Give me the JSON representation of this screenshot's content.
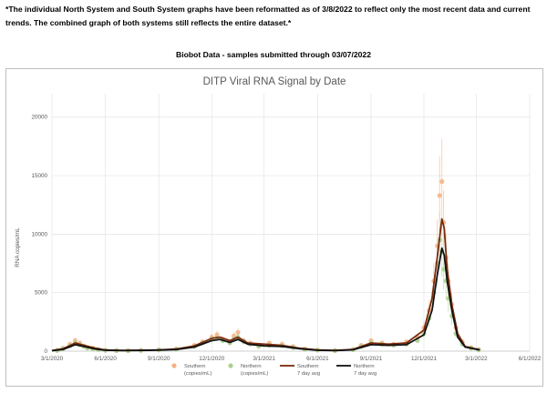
{
  "notice": "*The individual North System and South System graphs have been reformatted as of 3/8/2022 to reflect only the most recent data and current trends.  The combined graph of both systems still reflects the entire dataset.*",
  "subtitle": "Biobot Data - samples submitted through 03/07/2022",
  "chart_data": {
    "type": "scatter",
    "title": "DITP Viral RNA Signal by Date",
    "xlabel": "",
    "ylabel": "RNA copies/mL",
    "ylim": [
      0,
      22000
    ],
    "yticks": [
      0,
      5000,
      10000,
      15000,
      20000
    ],
    "xlim": [
      "2020-03-01",
      "2022-06-01"
    ],
    "xticks": [
      "3/1/2020",
      "6/1/2020",
      "9/1/2020",
      "12/1/2020",
      "3/1/2021",
      "6/1/2021",
      "9/1/2021",
      "12/1/2021",
      "3/1/2022",
      "6/1/2022"
    ],
    "grid": true,
    "legend_position": "bottom",
    "legend": [
      {
        "label": "Southern",
        "sub": "(copies/mL)",
        "kind": "marker",
        "color": "#f4b183"
      },
      {
        "label": "Northern",
        "sub": "(copies/mL)",
        "kind": "marker",
        "color": "#a9d18e"
      },
      {
        "label": "Southern",
        "sub": "7 day avg",
        "kind": "line",
        "color": "#7b2a0c"
      },
      {
        "label": "Northern",
        "sub": "7 day avg",
        "kind": "line",
        "color": "#111111"
      }
    ],
    "series": [
      {
        "name": "Southern (copies/mL)",
        "kind": "scatter",
        "color": "#f4b183",
        "x": [
          "2020-03-10",
          "2020-03-20",
          "2020-04-01",
          "2020-04-10",
          "2020-04-18",
          "2020-04-25",
          "2020-05-01",
          "2020-05-10",
          "2020-05-20",
          "2020-06-01",
          "2020-06-20",
          "2020-07-10",
          "2020-08-01",
          "2020-09-01",
          "2020-10-01",
          "2020-11-01",
          "2020-11-15",
          "2020-12-01",
          "2020-12-10",
          "2020-12-20",
          "2021-01-01",
          "2021-01-08",
          "2021-01-15",
          "2021-01-25",
          "2021-02-05",
          "2021-02-20",
          "2021-03-10",
          "2021-04-01",
          "2021-04-20",
          "2021-05-10",
          "2021-06-01",
          "2021-07-01",
          "2021-08-01",
          "2021-08-15",
          "2021-09-01",
          "2021-09-20",
          "2021-10-10",
          "2021-11-01",
          "2021-11-20",
          "2021-12-01",
          "2021-12-10",
          "2021-12-18",
          "2021-12-24",
          "2021-12-28",
          "2022-01-01",
          "2022-01-04",
          "2022-01-08",
          "2022-01-12",
          "2022-01-18",
          "2022-01-25",
          "2022-02-05",
          "2022-02-20",
          "2022-03-05"
        ],
        "y": [
          80,
          250,
          600,
          900,
          700,
          450,
          300,
          250,
          150,
          80,
          60,
          50,
          80,
          120,
          200,
          500,
          800,
          1200,
          1400,
          1000,
          800,
          1300,
          1600,
          900,
          700,
          500,
          700,
          600,
          400,
          200,
          100,
          60,
          150,
          500,
          900,
          700,
          600,
          800,
          1200,
          2000,
          3500,
          6000,
          9000,
          13300,
          14500,
          11000,
          8000,
          6000,
          4000,
          2000,
          800,
          300,
          150
        ]
      },
      {
        "name": "Northern (copies/mL)",
        "kind": "scatter",
        "color": "#a9d18e",
        "x": [
          "2020-03-10",
          "2020-03-20",
          "2020-04-01",
          "2020-04-10",
          "2020-04-18",
          "2020-04-25",
          "2020-05-01",
          "2020-05-10",
          "2020-05-20",
          "2020-06-01",
          "2020-06-20",
          "2020-07-10",
          "2020-08-01",
          "2020-09-01",
          "2020-10-01",
          "2020-11-01",
          "2020-11-15",
          "2020-12-01",
          "2020-12-10",
          "2020-12-20",
          "2021-01-01",
          "2021-01-08",
          "2021-01-15",
          "2021-01-25",
          "2021-02-05",
          "2021-02-20",
          "2021-03-10",
          "2021-04-01",
          "2021-04-20",
          "2021-05-10",
          "2021-06-01",
          "2021-07-01",
          "2021-08-01",
          "2021-08-15",
          "2021-09-01",
          "2021-09-20",
          "2021-10-10",
          "2021-11-01",
          "2021-11-20",
          "2021-12-01",
          "2021-12-10",
          "2021-12-18",
          "2021-12-24",
          "2021-12-28",
          "2022-01-01",
          "2022-01-04",
          "2022-01-08",
          "2022-01-12",
          "2022-01-18",
          "2022-01-25",
          "2022-02-05",
          "2022-02-20",
          "2022-03-05"
        ],
        "y": [
          60,
          200,
          450,
          700,
          550,
          400,
          250,
          180,
          120,
          70,
          50,
          40,
          60,
          100,
          150,
          400,
          700,
          1000,
          1100,
          900,
          700,
          1000,
          1200,
          800,
          600,
          400,
          500,
          450,
          300,
          150,
          80,
          50,
          120,
          400,
          700,
          600,
          500,
          600,
          900,
          1500,
          2800,
          5000,
          7500,
          9500,
          8500,
          7000,
          6000,
          4500,
          3000,
          1500,
          600,
          250,
          100
        ]
      },
      {
        "name": "Southern 7 day avg",
        "kind": "line",
        "color": "#7b2a0c",
        "x": [
          "2020-03-01",
          "2020-03-20",
          "2020-04-10",
          "2020-04-25",
          "2020-05-15",
          "2020-06-01",
          "2020-07-01",
          "2020-08-01",
          "2020-09-01",
          "2020-10-01",
          "2020-11-01",
          "2020-12-01",
          "2020-12-15",
          "2021-01-01",
          "2021-01-15",
          "2021-02-01",
          "2021-03-01",
          "2021-04-01",
          "2021-05-01",
          "2021-06-01",
          "2021-07-01",
          "2021-08-01",
          "2021-09-01",
          "2021-10-01",
          "2021-11-01",
          "2021-12-01",
          "2021-12-15",
          "2021-12-24",
          "2022-01-01",
          "2022-01-05",
          "2022-01-10",
          "2022-01-18",
          "2022-01-28",
          "2022-02-10",
          "2022-03-07"
        ],
        "y": [
          50,
          200,
          700,
          500,
          250,
          100,
          60,
          80,
          110,
          180,
          450,
          1100,
          1200,
          900,
          1200,
          700,
          600,
          500,
          250,
          100,
          60,
          150,
          700,
          600,
          700,
          1800,
          4500,
          8000,
          11300,
          10500,
          7000,
          4000,
          1500,
          400,
          120
        ]
      },
      {
        "name": "Northern 7 day avg",
        "kind": "line",
        "color": "#111111",
        "x": [
          "2020-03-01",
          "2020-03-20",
          "2020-04-10",
          "2020-04-25",
          "2020-05-15",
          "2020-06-01",
          "2020-07-01",
          "2020-08-01",
          "2020-09-01",
          "2020-10-01",
          "2020-11-01",
          "2020-12-01",
          "2020-12-15",
          "2021-01-01",
          "2021-01-15",
          "2021-02-01",
          "2021-03-01",
          "2021-04-01",
          "2021-05-01",
          "2021-06-01",
          "2021-07-01",
          "2021-08-01",
          "2021-09-01",
          "2021-10-01",
          "2021-11-01",
          "2021-12-01",
          "2021-12-15",
          "2021-12-24",
          "2022-01-01",
          "2022-01-05",
          "2022-01-10",
          "2022-01-18",
          "2022-01-28",
          "2022-02-10",
          "2022-03-07"
        ],
        "y": [
          40,
          150,
          550,
          400,
          180,
          80,
          50,
          60,
          90,
          140,
          350,
          900,
          1000,
          750,
          1000,
          600,
          450,
          400,
          200,
          80,
          50,
          120,
          550,
          500,
          550,
          1400,
          3500,
          6500,
          8800,
          8200,
          6000,
          3500,
          1200,
          350,
          100
        ]
      }
    ]
  }
}
